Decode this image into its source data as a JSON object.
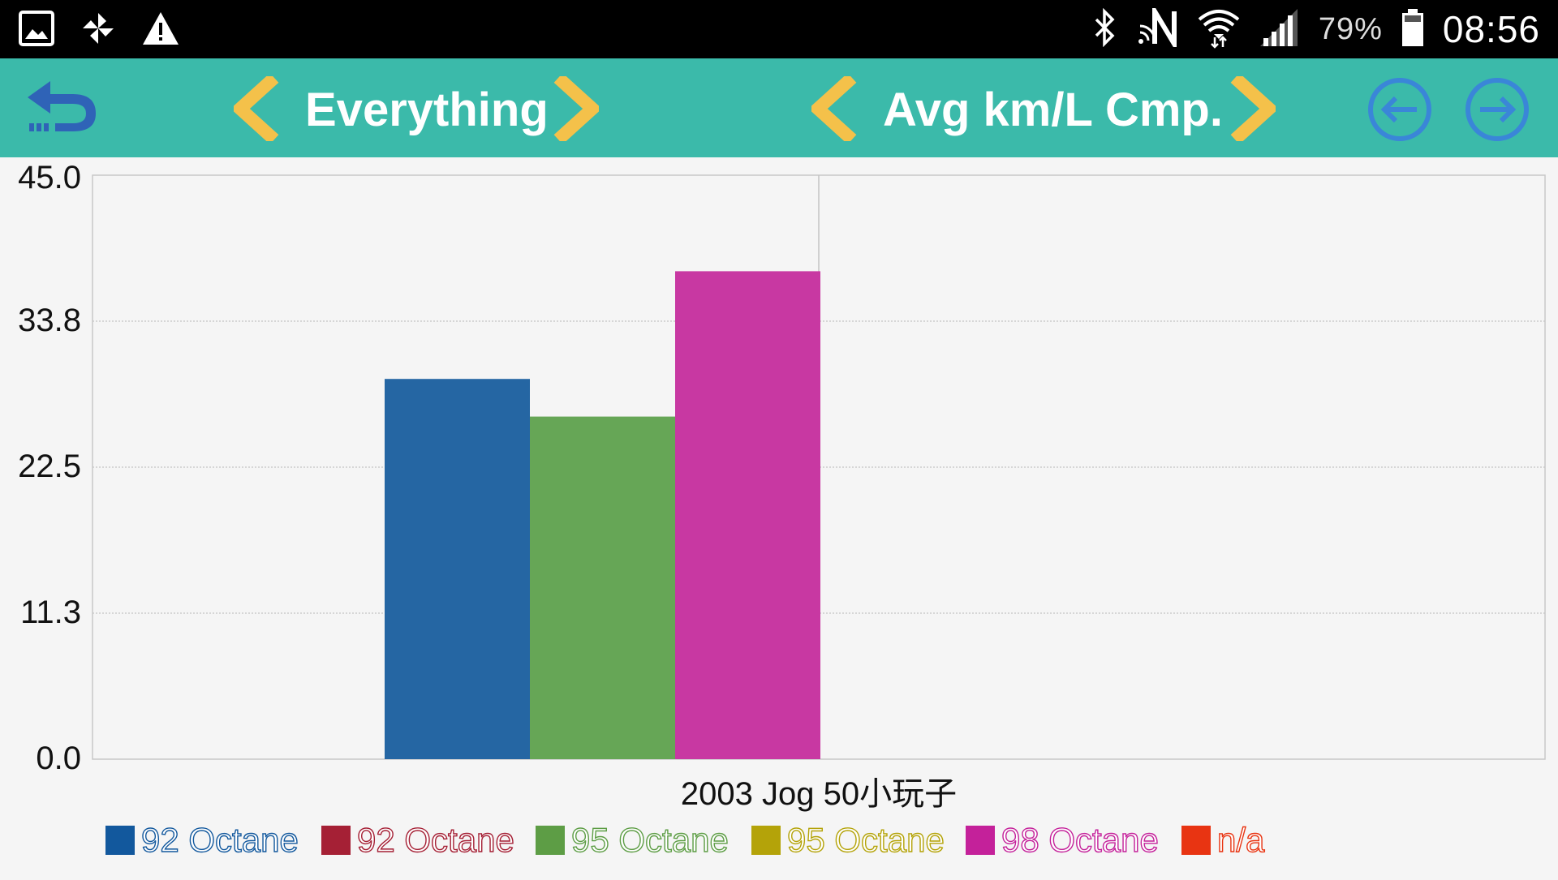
{
  "status_bar": {
    "battery_percent": "79%",
    "time": "08:56",
    "left_icons": [
      "image-icon",
      "pinwheel-icon",
      "warning-icon"
    ],
    "right_icons": [
      "bluetooth-icon",
      "nfc-icon",
      "wifi-icon",
      "signal-icon",
      "battery-icon"
    ]
  },
  "toolbar": {
    "filter_label": "Everything",
    "metric_label": "Avg km/L Cmp.",
    "icons": [
      "back-icon",
      "chevron-left-icon",
      "chevron-right-icon",
      "arrow-left-circle-icon",
      "arrow-right-circle-icon"
    ]
  },
  "colors": {
    "toolbar_bg": "#3bbaaa",
    "chevron": "#f4c14a",
    "nav_circle": "#3a86d8",
    "back_icon": "#2f63b7"
  },
  "chart_data": {
    "type": "bar",
    "categories": [
      "2003 Jog 50小玩子"
    ],
    "series": [
      {
        "name": "92 Octane",
        "values": [
          29.3
        ],
        "color": "#2566a3",
        "legend_color": "#12589d"
      },
      {
        "name": "92 Octane",
        "values": [
          null
        ],
        "color": "#a52035",
        "legend_color": "#a52035"
      },
      {
        "name": "95 Octane",
        "values": [
          26.4
        ],
        "color": "#66a656",
        "legend_color": "#5d9d45"
      },
      {
        "name": "95 Octane",
        "values": [
          null
        ],
        "color": "#b4a309",
        "legend_color": "#b4a309"
      },
      {
        "name": "98 Octane",
        "values": [
          37.6
        ],
        "color": "#c838a2",
        "legend_color": "#c4219a"
      },
      {
        "name": "n/a",
        "values": [
          null
        ],
        "color": "#e83412",
        "legend_color": "#e83412"
      }
    ],
    "y_ticks": [
      "45.0",
      "33.8",
      "22.5",
      "11.3",
      "0.0"
    ],
    "ylim": [
      0,
      45
    ],
    "grid": true
  }
}
